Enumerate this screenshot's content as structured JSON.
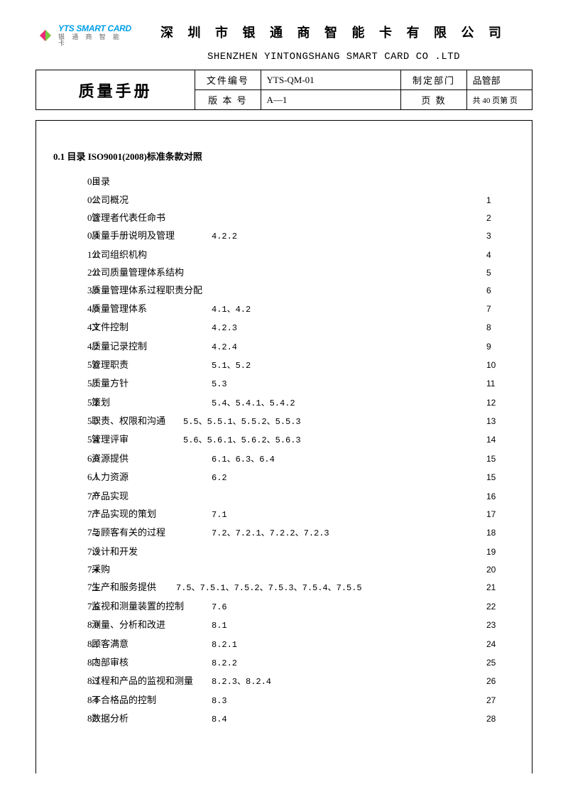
{
  "logo": {
    "brand_en": "YTS SMART CARD",
    "brand_cn": "银 通 商 智 能 卡",
    "shape_colors": {
      "a": "#f5a623",
      "b": "#7ac943",
      "c": "#ec297b"
    }
  },
  "header": {
    "company_cn": "深 圳 市 银 通 商 智 能 卡 有 限 公 司",
    "company_en": "SHENZHEN YINTONGSHANG SMART CARD CO .LTD"
  },
  "info": {
    "doc_title": "质量手册",
    "doc_no_label": "文件编号",
    "doc_no": "YTS-QM-01",
    "version_label": "版 本 号",
    "version": "A—1",
    "dept_label": "制定部门",
    "dept": "品管部",
    "pages_label": "页    数",
    "pages": "共 40 页第  页"
  },
  "toc": {
    "title": "0.1  目录 ISO9001(2008)标准条款对照",
    "rows": [
      {
        "num": "0.1",
        "label": "目录",
        "clause": "",
        "page": ""
      },
      {
        "num": "0.2",
        "label": "公司概况",
        "clause": "",
        "page": "1"
      },
      {
        "num": "0.3",
        "label": "管理者代表任命书",
        "clause": "",
        "page": "2"
      },
      {
        "num": "0.4",
        "label": "质量手册说明及管理",
        "clause": "4.2.2",
        "page": "3"
      },
      {
        "num": "1.0",
        "label": "公司组织机构",
        "clause": "",
        "page": "4"
      },
      {
        "num": "2.0",
        "label": "公司质量管理体系结构",
        "clause": "",
        "page": "5"
      },
      {
        "num": "3.0",
        "label": "质量管理体系过程职责分配",
        "clause": "",
        "page": "6"
      },
      {
        "num": "4.0",
        "label": "质量管理体系",
        "clause": "4.1、4.2",
        "page": "7"
      },
      {
        "num": "4.1",
        "label": "文件控制",
        "clause": "4.2.3",
        "page": "8"
      },
      {
        "num": "4.2",
        "label": "质量记录控制",
        "clause": "4.2.4",
        "page": "9"
      },
      {
        "num": "5.0",
        "label": "管理职责",
        "clause": "5.1、5.2",
        "page": "10"
      },
      {
        "num": "5.1",
        "label": "质量方针",
        "clause": "5.3",
        "page": "11"
      },
      {
        "num": "5.2",
        "label": "策划",
        "clause": "5.4、5.4.1、5.4.2",
        "page": "12"
      },
      {
        "num": "5.3",
        "label": "职责、权限和沟通",
        "clause": "5.5、5.5.1、5.5.2、5.5.3",
        "page": "13",
        "clause_shift": -40
      },
      {
        "num": "5.4",
        "label": "管理评审",
        "clause": "5.6、5.6.1、5.6.2、5.6.3",
        "page": "14",
        "clause_shift": -40
      },
      {
        "num": "6.0",
        "label": "资源提供",
        "clause": "6.1、6.3、6.4",
        "page": "15"
      },
      {
        "num": "6.1",
        "label": "人力资源",
        "clause": "6.2",
        "page": "15"
      },
      {
        "num": "7.0",
        "label": "产品实现",
        "clause": "",
        "page": "16"
      },
      {
        "num": "7.1",
        "label": "产品实现的策划",
        "clause": "7.1",
        "page": "17"
      },
      {
        "num": "7.2",
        "label": "与顾客有关的过程",
        "clause": "7.2、7.2.1、7.2.2、7.2.3",
        "page": "18"
      },
      {
        "num": "7.3",
        "label": "设计和开发",
        "clause": "",
        "page": "19"
      },
      {
        "num": "7.4",
        "label": "采购",
        "clause": "",
        "page": "20"
      },
      {
        "num": "7.5",
        "label": "生产和服务提供",
        "clause": "7.5、7.5.1、7.5.2、7.5.3、7.5.4、7.5.5",
        "page": "21",
        "clause_shift": -50
      },
      {
        "num": "7.6",
        "label": "监视和测量装置的控制",
        "clause": "7.6",
        "page": "22"
      },
      {
        "num": "8.0",
        "label": "测量、分析和改进",
        "clause": "8.1",
        "page": "23"
      },
      {
        "num": "8.1",
        "label": "顾客满意",
        "clause": "8.2.1",
        "page": "24"
      },
      {
        "num": "8.2",
        "label": "内部审核",
        "clause": "8.2.2",
        "page": "25"
      },
      {
        "num": "8.3",
        "label": "过程和产品的监视和测量",
        "clause": "8.2.3、8.2.4",
        "page": "26"
      },
      {
        "num": "8.4",
        "label": "不合格品的控制",
        "clause": "8.3",
        "page": "27"
      },
      {
        "num": "8.5",
        "label": "数据分析",
        "clause": "8.4",
        "page": "28"
      }
    ]
  }
}
